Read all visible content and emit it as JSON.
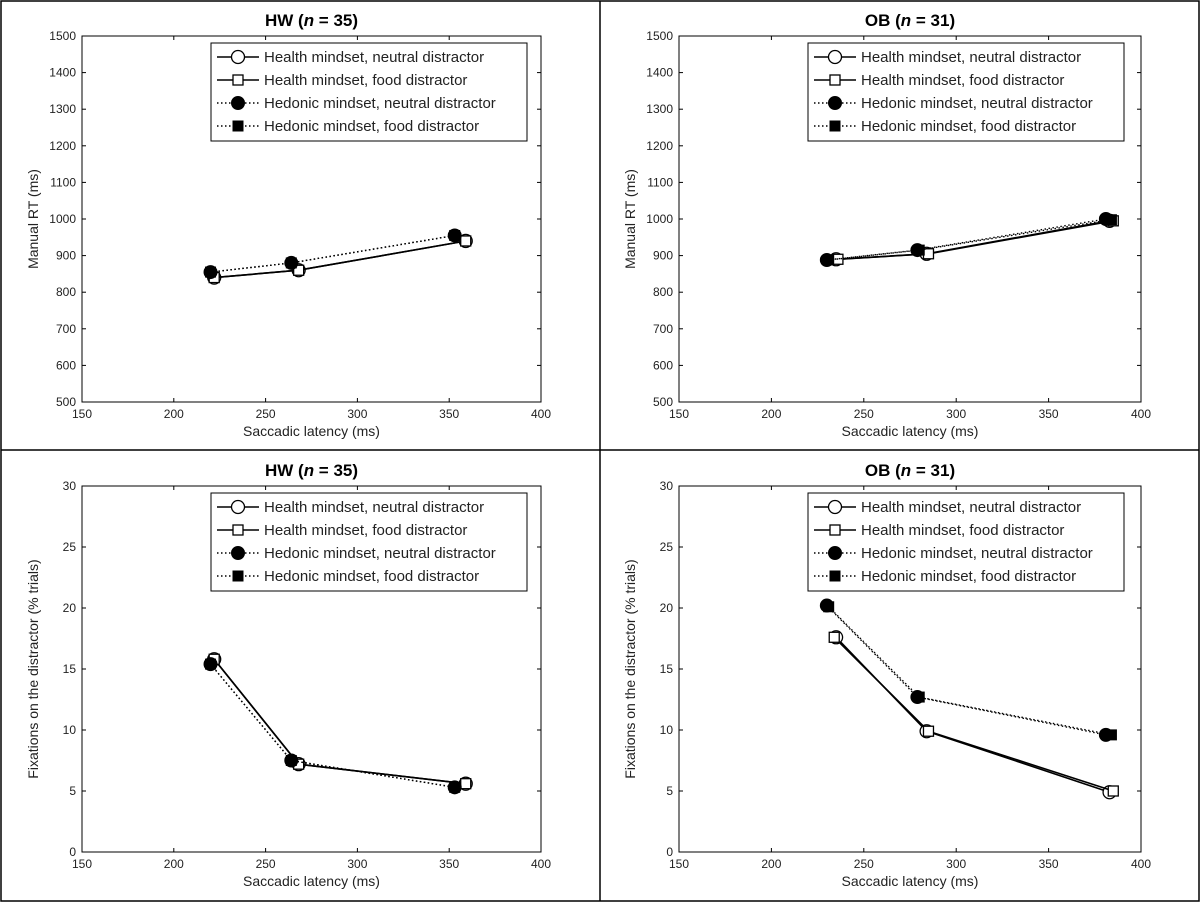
{
  "chart_data": [
    {
      "type": "line",
      "title_group": "HW",
      "title_n": "35",
      "xlabel": "Saccadic latency (ms)",
      "ylabel": "Manual RT (ms)",
      "xlim": [
        150,
        400
      ],
      "ylim": [
        500,
        1500
      ],
      "xticks": [
        150,
        200,
        250,
        300,
        350,
        400
      ],
      "yticks": [
        500,
        600,
        700,
        800,
        900,
        1000,
        1100,
        1200,
        1300,
        1400,
        1500
      ],
      "legend_position": "top-right",
      "grid": false,
      "series": [
        {
          "name": "Health mindset, neutral distractor",
          "marker": "circle-open",
          "line": "solid",
          "x": [
            222,
            268,
            359
          ],
          "y": [
            840,
            860,
            940
          ]
        },
        {
          "name": "Health mindset, food distractor",
          "marker": "square-open",
          "line": "solid",
          "x": [
            222,
            268,
            359
          ],
          "y": [
            840,
            860,
            940
          ]
        },
        {
          "name": "Hedonic mindset, neutral distractor",
          "marker": "circle-filled",
          "line": "dotted",
          "x": [
            220,
            264,
            353
          ],
          "y": [
            855,
            880,
            955
          ]
        },
        {
          "name": "Hedonic mindset, food distractor",
          "marker": "square-filled",
          "line": "dotted",
          "x": [
            220,
            264,
            353
          ],
          "y": [
            855,
            880,
            955
          ]
        }
      ]
    },
    {
      "type": "line",
      "title_group": "OB",
      "title_n": "31",
      "xlabel": "Saccadic latency (ms)",
      "ylabel": "Manual RT (ms)",
      "xlim": [
        150,
        400
      ],
      "ylim": [
        500,
        1500
      ],
      "xticks": [
        150,
        200,
        250,
        300,
        350,
        400
      ],
      "yticks": [
        500,
        600,
        700,
        800,
        900,
        1000,
        1100,
        1200,
        1300,
        1400,
        1500
      ],
      "legend_position": "top-right",
      "grid": false,
      "series": [
        {
          "name": "Health mindset, neutral distractor",
          "marker": "circle-open",
          "line": "solid",
          "x": [
            235,
            284,
            383
          ],
          "y": [
            890,
            905,
            995
          ]
        },
        {
          "name": "Health mindset, food distractor",
          "marker": "square-open",
          "line": "solid",
          "x": [
            236,
            285,
            385
          ],
          "y": [
            890,
            905,
            995
          ]
        },
        {
          "name": "Hedonic mindset, neutral distractor",
          "marker": "circle-filled",
          "line": "dotted",
          "x": [
            230,
            279,
            381
          ],
          "y": [
            888,
            915,
            1000
          ]
        },
        {
          "name": "Hedonic mindset, food distractor",
          "marker": "square-filled",
          "line": "dotted",
          "x": [
            231,
            280,
            384
          ],
          "y": [
            888,
            915,
            998
          ]
        }
      ]
    },
    {
      "type": "line",
      "title_group": "HW",
      "title_n": "35",
      "xlabel": "Saccadic latency (ms)",
      "ylabel": "Fixations on the distractor (% trials)",
      "xlim": [
        150,
        400
      ],
      "ylim": [
        0,
        30
      ],
      "xticks": [
        150,
        200,
        250,
        300,
        350,
        400
      ],
      "yticks": [
        0,
        5,
        10,
        15,
        20,
        25,
        30
      ],
      "legend_position": "top-right",
      "grid": false,
      "series": [
        {
          "name": "Health mindset, neutral distractor",
          "marker": "circle-open",
          "line": "solid",
          "x": [
            222,
            268,
            359
          ],
          "y": [
            15.8,
            7.2,
            5.6
          ]
        },
        {
          "name": "Health mindset, food distractor",
          "marker": "square-open",
          "line": "solid",
          "x": [
            222,
            268,
            359
          ],
          "y": [
            15.8,
            7.2,
            5.6
          ]
        },
        {
          "name": "Hedonic mindset, neutral distractor",
          "marker": "circle-filled",
          "line": "dotted",
          "x": [
            220,
            264,
            353
          ],
          "y": [
            15.4,
            7.5,
            5.3
          ]
        },
        {
          "name": "Hedonic mindset, food distractor",
          "marker": "square-filled",
          "line": "dotted",
          "x": [
            220,
            264,
            353
          ],
          "y": [
            15.4,
            7.5,
            5.3
          ]
        }
      ]
    },
    {
      "type": "line",
      "title_group": "OB",
      "title_n": "31",
      "xlabel": "Saccadic latency (ms)",
      "ylabel": "Fixations on the distractor (% trials)",
      "xlim": [
        150,
        400
      ],
      "ylim": [
        0,
        30
      ],
      "xticks": [
        150,
        200,
        250,
        300,
        350,
        400
      ],
      "yticks": [
        0,
        5,
        10,
        15,
        20,
        25,
        30
      ],
      "legend_position": "top-right",
      "grid": false,
      "series": [
        {
          "name": "Health mindset, neutral distractor",
          "marker": "circle-open",
          "line": "solid",
          "x": [
            235,
            284,
            383
          ],
          "y": [
            17.6,
            9.9,
            4.9
          ]
        },
        {
          "name": "Health mindset, food distractor",
          "marker": "square-open",
          "line": "solid",
          "x": [
            234,
            285,
            385
          ],
          "y": [
            17.6,
            9.9,
            5.0
          ]
        },
        {
          "name": "Hedonic mindset, neutral distractor",
          "marker": "circle-filled",
          "line": "dotted",
          "x": [
            230,
            279,
            381
          ],
          "y": [
            20.2,
            12.7,
            9.6
          ]
        },
        {
          "name": "Hedonic mindset, food distractor",
          "marker": "square-filled",
          "line": "dotted",
          "x": [
            231,
            280,
            384
          ],
          "y": [
            20.1,
            12.7,
            9.6
          ]
        }
      ]
    }
  ]
}
